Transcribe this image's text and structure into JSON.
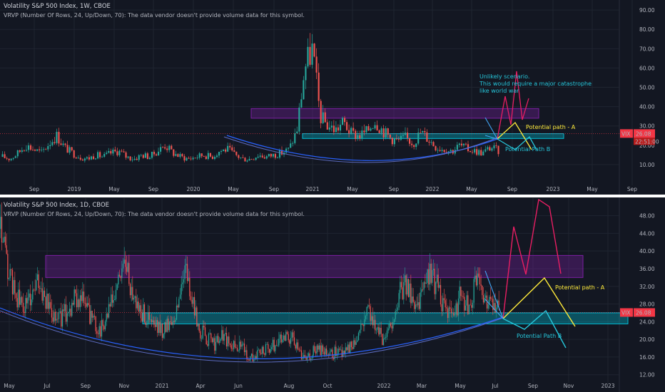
{
  "chart_data": [
    {
      "type": "candlestick",
      "title": "Volatility S&P 500 Index, 1W, CBOE",
      "subtitle": "VRVP (Number Of Rows, 24, Up/Down, 70): The data vendor doesn't provide volume data for this symbol.",
      "ylim": [
        0,
        93
      ],
      "yticks": [
        10,
        20,
        30,
        40,
        50,
        60,
        70,
        80,
        90
      ],
      "ytick_labels": [
        "10.00",
        "20.00",
        "30.00",
        "40.00",
        "50.00",
        "60.00",
        "70.00",
        "80.00",
        "90.00"
      ],
      "xtick_labels": [
        "Sep",
        "2019",
        "May",
        "Sep",
        "2020",
        "May",
        "Sep",
        "2021",
        "May",
        "Sep",
        "2022",
        "May",
        "Sep",
        "2023",
        "May",
        "Sep"
      ],
      "price_tag": {
        "symbol": "VIX",
        "value": "26.08",
        "timer": "22:51:00"
      },
      "zones": [
        {
          "name": "purple-resistance-zone",
          "low": 34,
          "high": 39
        },
        {
          "name": "cyan-support-zone",
          "low": 23.5,
          "high": 26
        }
      ],
      "annotations": [
        {
          "text": "Unlikely scenario.",
          "color": "#26c6da"
        },
        {
          "text": "This would require a major catastrophe",
          "color": "#26c6da"
        },
        {
          "text": "like world war",
          "color": "#26c6da"
        },
        {
          "text": "Potential path - A",
          "color": "#ffeb3b"
        },
        {
          "text": "Potential Path B",
          "color": "#26c6da"
        }
      ],
      "series": [
        {
          "name": "",
          "x": [
            0,
            4,
            8,
            12,
            16,
            20,
            24,
            28,
            32,
            36,
            40,
            44,
            48,
            52,
            56,
            60,
            64,
            68,
            72,
            76,
            80,
            84,
            88,
            92,
            96,
            100,
            104,
            108,
            112,
            116,
            120,
            124,
            128,
            132,
            136,
            140,
            144,
            148,
            152,
            156,
            160,
            164,
            168,
            172,
            176,
            180,
            184,
            188,
            192,
            196,
            200,
            204,
            208,
            212,
            216,
            220,
            224,
            228,
            232,
            236,
            240,
            244,
            248,
            252,
            256
          ],
          "values": [
            14,
            13,
            16,
            20,
            18,
            16,
            21,
            25,
            19,
            16,
            14,
            13,
            15,
            14,
            16,
            17,
            14,
            13,
            15,
            14,
            17,
            20,
            16,
            14,
            13,
            14,
            15,
            14,
            17,
            18,
            15,
            13,
            13,
            15,
            14,
            15,
            16,
            18,
            28,
            60,
            70,
            35,
            30,
            28,
            32,
            26,
            25,
            27,
            33,
            28,
            24,
            22,
            24,
            21,
            27,
            23,
            19,
            18,
            17,
            20,
            18,
            17,
            16,
            19,
            17
          ]
        }
      ]
    },
    {
      "type": "candlestick",
      "title": "Volatility S&P 500 Index, 1D, CBOE",
      "subtitle": "VRVP (Number Of Rows, 24, Up/Down, 70): The data vendor doesn't provide volume data for this symbol.",
      "ylim": [
        10.5,
        51
      ],
      "yticks": [
        12,
        16,
        20,
        24,
        28,
        32,
        36,
        40,
        44,
        48
      ],
      "ytick_labels": [
        "12.00",
        "16.00",
        "20.00",
        "24.00",
        "28.00",
        "32.00",
        "36.00",
        "40.00",
        "44.00",
        "48.00"
      ],
      "xtick_labels": [
        "May",
        "Jul",
        "Sep",
        "Nov",
        "2021",
        "Apr",
        "Jun",
        "Aug",
        "Oct",
        "2022",
        "Mar",
        "May",
        "Jul",
        "Sep",
        "Nov",
        "2023"
      ],
      "price_tag": {
        "symbol": "VIX",
        "value": "26.08"
      },
      "zones": [
        {
          "name": "purple-resistance-zone",
          "low": 34,
          "high": 39
        },
        {
          "name": "cyan-support-zone",
          "low": 23.5,
          "high": 26
        }
      ],
      "annotations": [
        {
          "text": "Potential path - A",
          "color": "#ffeb3b"
        },
        {
          "text": "Potential Path B",
          "color": "#26c6da"
        }
      ]
    }
  ],
  "colors": {
    "background": "#131722",
    "up": "#26a69a",
    "down": "#ef5350",
    "grid": "#1f2430",
    "price_tag": "#f23645",
    "purple_zone": "#7b1fa2",
    "cyan_zone": "#00bcd4",
    "curve": "#2962ff",
    "path_a": "#ffeb3b",
    "path_b": "#26c6da",
    "path_unlikely": "#e91e63"
  }
}
